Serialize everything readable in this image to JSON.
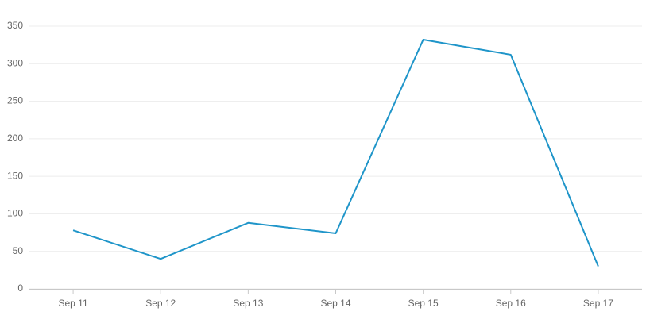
{
  "chart_data": {
    "type": "line",
    "categories": [
      "Sep 11",
      "Sep 12",
      "Sep 13",
      "Sep 14",
      "Sep 15",
      "Sep 16",
      "Sep 17"
    ],
    "values": [
      78,
      40,
      88,
      74,
      332,
      312,
      30
    ],
    "color": "#1f95c9",
    "ylim": [
      0,
      350
    ],
    "yticks": [
      0,
      50,
      100,
      150,
      200,
      250,
      300,
      350
    ],
    "grid": true
  }
}
